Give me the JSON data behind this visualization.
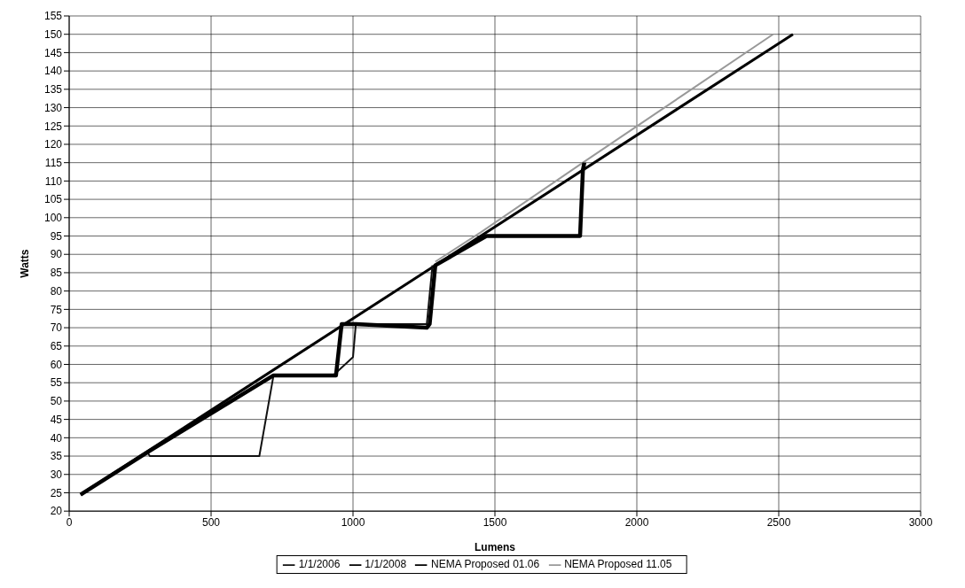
{
  "chart_data": {
    "type": "line",
    "xlabel": "Lumens",
    "ylabel": "Watts",
    "xlim": [
      0,
      3000
    ],
    "xticks": [
      0,
      500,
      1000,
      1500,
      2000,
      2500,
      3000
    ],
    "ylim": [
      20,
      155
    ],
    "yticks": [
      20,
      25,
      30,
      35,
      40,
      45,
      50,
      55,
      60,
      65,
      70,
      75,
      80,
      85,
      90,
      95,
      100,
      105,
      110,
      115,
      120,
      125,
      130,
      135,
      140,
      145,
      150,
      155
    ],
    "grid": true,
    "legend": "bottom",
    "marker": "none",
    "line_style": "solid",
    "series": [
      {
        "name": "1/1/2008",
        "color": "#000000",
        "x": [
          40,
          2550
        ],
        "values": [
          24.5,
          150
        ]
      },
      {
        "name": "1/1/2006",
        "color": "#111111",
        "x": [
          275,
          285,
          670,
          720,
          930,
          1000,
          1010,
          1260,
          1280
        ],
        "values": [
          36,
          35,
          35,
          57,
          57,
          62,
          71,
          71,
          87
        ]
      },
      {
        "name": "NEMA Proposed 11.05",
        "color": "#999999",
        "x": [
          1290,
          1450,
          1810,
          2480
        ],
        "values": [
          88,
          96,
          115,
          150
        ]
      },
      {
        "name": "NEMA Proposed 01.06",
        "color": "#000000",
        "x": [
          40,
          285,
          720,
          940,
          960,
          1010,
          1260,
          1270,
          1290,
          1470,
          1800,
          1810,
          1815
        ],
        "values": [
          24.5,
          36.5,
          57,
          57,
          71,
          71,
          70,
          71,
          87,
          95,
          95,
          113,
          115
        ]
      }
    ]
  }
}
